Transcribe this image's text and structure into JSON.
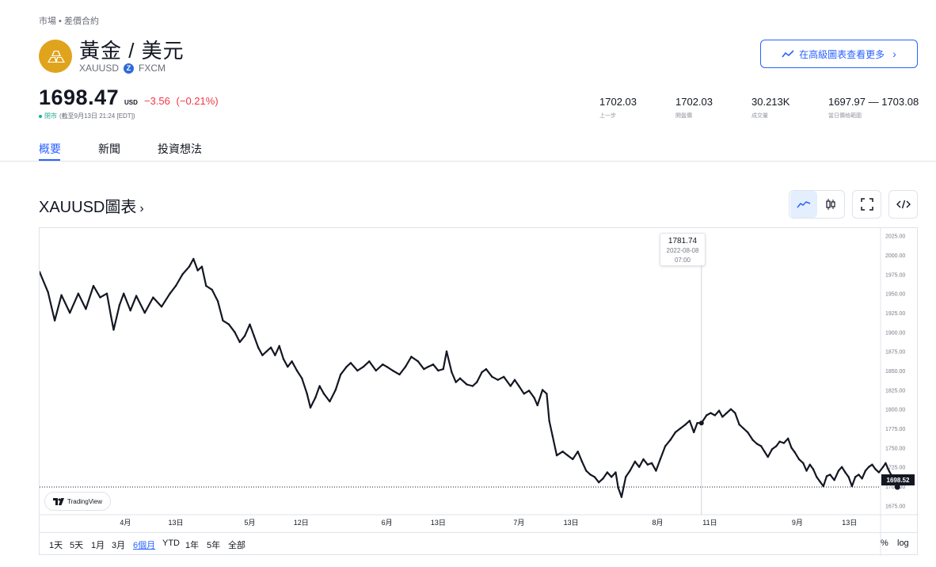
{
  "breadcrumb": "市場 • 差價合約",
  "symbol": {
    "title": "黃金 / 美元",
    "ticker": "XAUUSD",
    "exchange": "FXCM",
    "exchange_badge": "Z"
  },
  "advanced_button": {
    "label": "在高級圖表查看更多"
  },
  "quote": {
    "price": "1698.47",
    "currency": "USD",
    "change": "−3.56",
    "change_pct": "(−0.21%)",
    "status": "閉市",
    "as_of": "(截至9月13日 21:24 [EDT])"
  },
  "stats": [
    {
      "value": "1702.03",
      "label": "上一步"
    },
    {
      "value": "1702.03",
      "label": "開盤價"
    },
    {
      "value": "30.213K",
      "label": "成交量"
    },
    {
      "value": "1697.97 — 1703.08",
      "label": "當日價格範圍"
    }
  ],
  "tabs": [
    {
      "label": "概要",
      "active": true
    },
    {
      "label": "新聞",
      "active": false
    },
    {
      "label": "投資想法",
      "active": false
    }
  ],
  "chart_header": {
    "title": "XAUUSD圖表",
    "chevron": "›"
  },
  "controls": {
    "line_icon": "line-chart-icon",
    "candle_icon": "candlestick-icon",
    "fullscreen_icon": "fullscreen-icon",
    "embed_icon": "embed-code-icon"
  },
  "tooltip": {
    "price": "1781.74",
    "date": "2022-08-08",
    "time": "07:00"
  },
  "branding": {
    "label": "TradingView"
  },
  "last_price_tag": "1698.52",
  "range_buttons": [
    {
      "label": "1天",
      "active": false
    },
    {
      "label": "5天",
      "active": false
    },
    {
      "label": "1月",
      "active": false
    },
    {
      "label": "3月",
      "active": false
    },
    {
      "label": "6個月",
      "active": true
    },
    {
      "label": "YTD",
      "active": false
    },
    {
      "label": "1年",
      "active": false
    },
    {
      "label": "5年",
      "active": false
    },
    {
      "label": "全部",
      "active": false
    }
  ],
  "scale_buttons": {
    "percent": "%",
    "log": "log"
  },
  "colors": {
    "accent": "#2962ff",
    "negative": "#f23645",
    "positive": "#22ab94",
    "line": "#131722",
    "gold": "#e0a31c"
  },
  "chart_data": {
    "type": "line",
    "ylim": [
      1663,
      2035
    ],
    "y_ticks": [
      "2025.00",
      "2000.00",
      "1975.00",
      "1950.00",
      "1925.00",
      "1900.00",
      "1875.00",
      "1850.00",
      "1825.00",
      "1800.00",
      "1775.00",
      "1750.00",
      "1725.00",
      "1700.00",
      "1675.00"
    ],
    "y_tick_values": [
      2025,
      2000,
      1975,
      1950,
      1925,
      1900,
      1875,
      1850,
      1825,
      1800,
      1775,
      1750,
      1725,
      1700,
      1675
    ],
    "x_ticks": [
      {
        "label": "4月",
        "t": 0.102
      },
      {
        "label": "13日",
        "t": 0.162
      },
      {
        "label": "5月",
        "t": 0.25
      },
      {
        "label": "12日",
        "t": 0.311
      },
      {
        "label": "6月",
        "t": 0.413
      },
      {
        "label": "13日",
        "t": 0.474
      },
      {
        "label": "7月",
        "t": 0.57
      },
      {
        "label": "13日",
        "t": 0.632
      },
      {
        "label": "8月",
        "t": 0.735
      },
      {
        "label": "11日",
        "t": 0.797
      },
      {
        "label": "9月",
        "t": 0.901
      },
      {
        "label": "13日",
        "t": 0.963
      }
    ],
    "crosshair_t": 0.787,
    "series": [
      {
        "values": [
          [
            0.0,
            1978
          ],
          [
            0.01,
            1952
          ],
          [
            0.018,
            1915
          ],
          [
            0.026,
            1948
          ],
          [
            0.036,
            1925
          ],
          [
            0.046,
            1950
          ],
          [
            0.055,
            1930
          ],
          [
            0.064,
            1960
          ],
          [
            0.072,
            1945
          ],
          [
            0.08,
            1950
          ],
          [
            0.085,
            1920
          ],
          [
            0.088,
            1903
          ],
          [
            0.095,
            1935
          ],
          [
            0.1,
            1950
          ],
          [
            0.108,
            1928
          ],
          [
            0.115,
            1947
          ],
          [
            0.125,
            1925
          ],
          [
            0.135,
            1945
          ],
          [
            0.145,
            1933
          ],
          [
            0.155,
            1950
          ],
          [
            0.162,
            1960
          ],
          [
            0.17,
            1975
          ],
          [
            0.178,
            1985
          ],
          [
            0.183,
            1995
          ],
          [
            0.188,
            1980
          ],
          [
            0.193,
            1985
          ],
          [
            0.198,
            1960
          ],
          [
            0.205,
            1955
          ],
          [
            0.212,
            1940
          ],
          [
            0.218,
            1915
          ],
          [
            0.225,
            1910
          ],
          [
            0.232,
            1900
          ],
          [
            0.238,
            1887
          ],
          [
            0.244,
            1895
          ],
          [
            0.25,
            1910
          ],
          [
            0.255,
            1895
          ],
          [
            0.26,
            1880
          ],
          [
            0.265,
            1870
          ],
          [
            0.27,
            1875
          ],
          [
            0.275,
            1880
          ],
          [
            0.28,
            1870
          ],
          [
            0.285,
            1882
          ],
          [
            0.29,
            1865
          ],
          [
            0.295,
            1855
          ],
          [
            0.3,
            1862
          ],
          [
            0.306,
            1850
          ],
          [
            0.312,
            1840
          ],
          [
            0.318,
            1820
          ],
          [
            0.322,
            1802
          ],
          [
            0.328,
            1815
          ],
          [
            0.333,
            1830
          ],
          [
            0.338,
            1820
          ],
          [
            0.345,
            1810
          ],
          [
            0.352,
            1825
          ],
          [
            0.358,
            1845
          ],
          [
            0.365,
            1855
          ],
          [
            0.37,
            1860
          ],
          [
            0.378,
            1850
          ],
          [
            0.385,
            1855
          ],
          [
            0.392,
            1862
          ],
          [
            0.4,
            1850
          ],
          [
            0.408,
            1858
          ],
          [
            0.413,
            1855
          ],
          [
            0.42,
            1850
          ],
          [
            0.428,
            1845
          ],
          [
            0.435,
            1855
          ],
          [
            0.442,
            1868
          ],
          [
            0.45,
            1862
          ],
          [
            0.457,
            1852
          ],
          [
            0.462,
            1855
          ],
          [
            0.468,
            1858
          ],
          [
            0.474,
            1850
          ],
          [
            0.48,
            1852
          ],
          [
            0.484,
            1875
          ],
          [
            0.49,
            1848
          ],
          [
            0.495,
            1835
          ],
          [
            0.5,
            1840
          ],
          [
            0.508,
            1832
          ],
          [
            0.515,
            1830
          ],
          [
            0.52,
            1835
          ],
          [
            0.526,
            1848
          ],
          [
            0.531,
            1852
          ],
          [
            0.538,
            1842
          ],
          [
            0.545,
            1838
          ],
          [
            0.552,
            1842
          ],
          [
            0.56,
            1830
          ],
          [
            0.565,
            1838
          ],
          [
            0.57,
            1830
          ],
          [
            0.576,
            1820
          ],
          [
            0.582,
            1824
          ],
          [
            0.588,
            1815
          ],
          [
            0.592,
            1805
          ],
          [
            0.598,
            1825
          ],
          [
            0.603,
            1820
          ],
          [
            0.606,
            1785
          ],
          [
            0.61,
            1765
          ],
          [
            0.615,
            1740
          ],
          [
            0.622,
            1745
          ],
          [
            0.628,
            1740
          ],
          [
            0.634,
            1735
          ],
          [
            0.64,
            1745
          ],
          [
            0.645,
            1732
          ],
          [
            0.65,
            1720
          ],
          [
            0.655,
            1715
          ],
          [
            0.66,
            1712
          ],
          [
            0.665,
            1705
          ],
          [
            0.67,
            1710
          ],
          [
            0.675,
            1718
          ],
          [
            0.68,
            1712
          ],
          [
            0.685,
            1718
          ],
          [
            0.688,
            1698
          ],
          [
            0.692,
            1686
          ],
          [
            0.697,
            1712
          ],
          [
            0.702,
            1720
          ],
          [
            0.708,
            1732
          ],
          [
            0.713,
            1725
          ],
          [
            0.718,
            1735
          ],
          [
            0.723,
            1728
          ],
          [
            0.728,
            1730
          ],
          [
            0.733,
            1720
          ],
          [
            0.738,
            1735
          ],
          [
            0.744,
            1752
          ],
          [
            0.75,
            1760
          ],
          [
            0.756,
            1770
          ],
          [
            0.762,
            1775
          ],
          [
            0.768,
            1780
          ],
          [
            0.773,
            1785
          ],
          [
            0.778,
            1770
          ],
          [
            0.782,
            1782
          ],
          [
            0.787,
            1782
          ],
          [
            0.793,
            1792
          ],
          [
            0.798,
            1795
          ],
          [
            0.803,
            1792
          ],
          [
            0.808,
            1798
          ],
          [
            0.812,
            1790
          ],
          [
            0.817,
            1795
          ],
          [
            0.822,
            1800
          ],
          [
            0.827,
            1795
          ],
          [
            0.832,
            1780
          ],
          [
            0.837,
            1775
          ],
          [
            0.842,
            1770
          ],
          [
            0.848,
            1760
          ],
          [
            0.853,
            1755
          ],
          [
            0.858,
            1752
          ],
          [
            0.862,
            1745
          ],
          [
            0.866,
            1738
          ],
          [
            0.871,
            1748
          ],
          [
            0.876,
            1752
          ],
          [
            0.88,
            1758
          ],
          [
            0.885,
            1756
          ],
          [
            0.89,
            1762
          ],
          [
            0.894,
            1750
          ],
          [
            0.898,
            1744
          ],
          [
            0.903,
            1735
          ],
          [
            0.908,
            1730
          ],
          [
            0.912,
            1720
          ],
          [
            0.916,
            1728
          ],
          [
            0.92,
            1722
          ],
          [
            0.924,
            1712
          ],
          [
            0.928,
            1706
          ],
          [
            0.932,
            1700
          ],
          [
            0.936,
            1713
          ],
          [
            0.94,
            1715
          ],
          [
            0.945,
            1708
          ],
          [
            0.95,
            1720
          ],
          [
            0.954,
            1725
          ],
          [
            0.958,
            1718
          ],
          [
            0.962,
            1712
          ],
          [
            0.966,
            1700
          ],
          [
            0.97,
            1712
          ],
          [
            0.974,
            1715
          ],
          [
            0.978,
            1710
          ],
          [
            0.982,
            1720
          ],
          [
            0.986,
            1725
          ],
          [
            0.99,
            1728
          ],
          [
            0.994,
            1722
          ],
          [
            0.998,
            1718
          ],
          [
            1.003,
            1725
          ],
          [
            1.006,
            1730
          ],
          [
            1.01,
            1720
          ],
          [
            1.014,
            1712
          ],
          [
            1.018,
            1703
          ],
          [
            1.02,
            1699
          ]
        ]
      }
    ],
    "grid": false
  }
}
